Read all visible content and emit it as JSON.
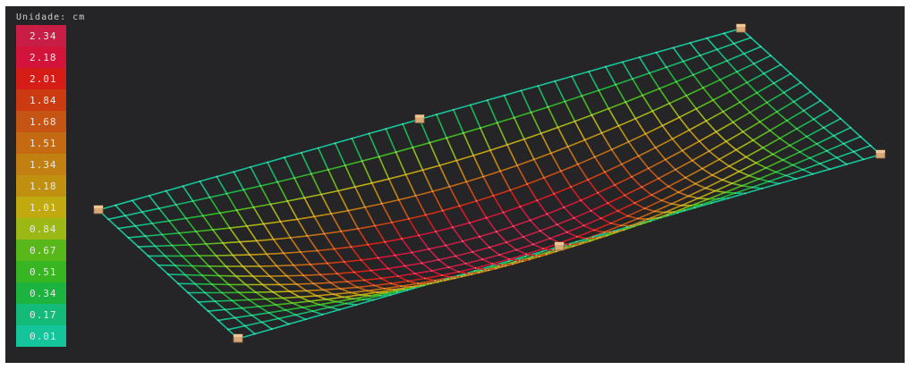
{
  "viewport": {
    "unit_label": "Unidade: cm",
    "background": "#252527"
  },
  "legend": {
    "items": [
      {
        "value": "2.34",
        "color": "#c81e46"
      },
      {
        "value": "2.18",
        "color": "#d2143a"
      },
      {
        "value": "2.01",
        "color": "#d61c16"
      },
      {
        "value": "1.84",
        "color": "#cc3a12"
      },
      {
        "value": "1.68",
        "color": "#c65414"
      },
      {
        "value": "1.51",
        "color": "#c46a12"
      },
      {
        "value": "1.34",
        "color": "#c28012"
      },
      {
        "value": "1.18",
        "color": "#c09010"
      },
      {
        "value": "1.01",
        "color": "#c0aa10"
      },
      {
        "value": "0.84",
        "color": "#9cb814"
      },
      {
        "value": "0.67",
        "color": "#58b81a"
      },
      {
        "value": "0.51",
        "color": "#38b622"
      },
      {
        "value": "0.34",
        "color": "#1cb43e"
      },
      {
        "value": "0.17",
        "color": "#14ba78"
      },
      {
        "value": "0.01",
        "color": "#14c49a"
      }
    ]
  },
  "mesh": {
    "max_deflection": 2.34,
    "min_deflection": 0.01,
    "support_color": "#d9a877",
    "support_icon": "support-box-icon"
  }
}
